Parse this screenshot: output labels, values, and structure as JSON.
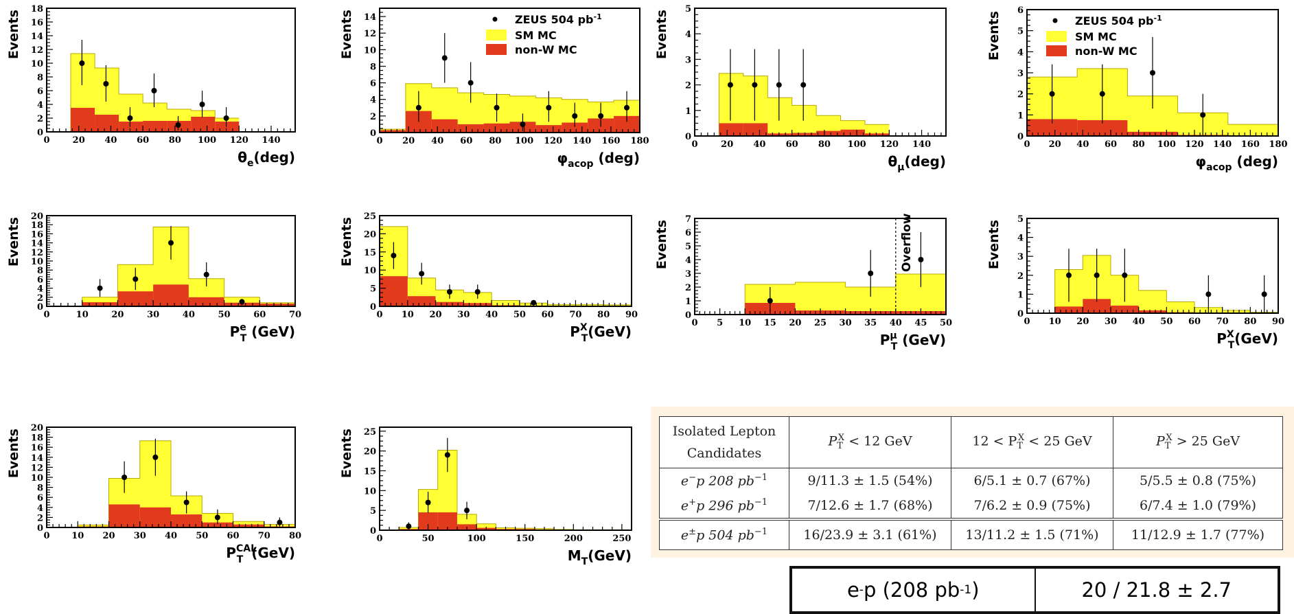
{
  "colors": {
    "sm": "#ffff33",
    "nonw": "#e23a1c",
    "frame": "#000000"
  },
  "chart_data": [
    {
      "id": "c1",
      "type": "bar",
      "xlabel_main": "θ",
      "xlabel_sub": "e",
      "xlabel_rest": "(deg)",
      "ylabel": "Events",
      "xlim": [
        0,
        155
      ],
      "ylim": [
        0,
        18
      ],
      "xticks": [
        0,
        20,
        40,
        60,
        80,
        100,
        120,
        140
      ],
      "yticks": [
        0,
        2,
        4,
        6,
        8,
        10,
        12,
        14,
        16,
        18
      ],
      "edges": [
        15,
        30,
        45,
        60,
        75,
        90,
        105,
        120
      ],
      "sm": [
        11.4,
        9.3,
        5.5,
        4.2,
        3.3,
        3.1,
        2.0
      ],
      "nonw": [
        3.5,
        2.5,
        1.5,
        1.6,
        1.6,
        2.2,
        1.5
      ],
      "points": [
        {
          "x": 22,
          "y": 10,
          "el": 3.2,
          "eh": 3.4
        },
        {
          "x": 37,
          "y": 7,
          "el": 2.6,
          "eh": 2.7
        },
        {
          "x": 52,
          "y": 2,
          "el": 1.3,
          "eh": 1.6
        },
        {
          "x": 67,
          "y": 6,
          "el": 2.4,
          "eh": 2.5
        },
        {
          "x": 82,
          "y": 1,
          "el": 0.8,
          "eh": 1.3
        },
        {
          "x": 97,
          "y": 4,
          "el": 1.9,
          "eh": 2.0
        },
        {
          "x": 112,
          "y": 2,
          "el": 1.3,
          "eh": 1.6
        }
      ]
    },
    {
      "id": "c2",
      "type": "bar",
      "xlabel_main": "φ",
      "xlabel_sub": "acop",
      "xlabel_rest": " (deg)",
      "ylabel": "Events",
      "xlim": [
        0,
        180
      ],
      "ylim": [
        0,
        15
      ],
      "xticks": [
        0,
        20,
        40,
        60,
        80,
        100,
        120,
        140,
        160,
        180
      ],
      "yticks": [
        0,
        2,
        4,
        6,
        8,
        10,
        12,
        14
      ],
      "edges": [
        0,
        18,
        36,
        54,
        72,
        90,
        108,
        126,
        144,
        162,
        180
      ],
      "sm": [
        0.4,
        5.9,
        5.4,
        4.8,
        4.6,
        4.4,
        4.2,
        4.0,
        3.7,
        3.9
      ],
      "nonw": [
        0.3,
        2.6,
        1.6,
        1.0,
        1.1,
        1.3,
        0.9,
        1.2,
        1.7,
        2.0
      ],
      "points": [
        {
          "x": 27,
          "y": 3,
          "el": 1.7,
          "eh": 2.0
        },
        {
          "x": 45,
          "y": 9,
          "el": 3.0,
          "eh": 3.0
        },
        {
          "x": 63,
          "y": 6,
          "el": 2.4,
          "eh": 2.5
        },
        {
          "x": 81,
          "y": 3,
          "el": 1.7,
          "eh": 1.7
        },
        {
          "x": 99,
          "y": 1,
          "el": 0.8,
          "eh": 1.3
        },
        {
          "x": 117,
          "y": 3,
          "el": 1.7,
          "eh": 2.0
        },
        {
          "x": 135,
          "y": 2,
          "el": 1.3,
          "eh": 1.6
        },
        {
          "x": 153,
          "y": 2,
          "el": 1.3,
          "eh": 1.6
        },
        {
          "x": 171,
          "y": 3,
          "el": 1.7,
          "eh": 2.0
        }
      ],
      "legend": {
        "data": "ZEUS 504 pb",
        "data_sup": "-1",
        "sm": "SM MC",
        "nonw": "non-W MC"
      }
    },
    {
      "id": "c3",
      "type": "bar",
      "xlabel_main": "θ",
      "xlabel_sub": "μ",
      "xlabel_rest": "(deg)",
      "ylabel": "Events",
      "xlim": [
        0,
        155
      ],
      "ylim": [
        0,
        5
      ],
      "xticks": [
        0,
        20,
        40,
        60,
        80,
        100,
        120,
        140
      ],
      "yticks": [
        0,
        1,
        2,
        3,
        4,
        5
      ],
      "edges": [
        15,
        30,
        45,
        60,
        75,
        90,
        105,
        120
      ],
      "sm": [
        2.45,
        2.35,
        1.5,
        1.2,
        0.8,
        0.6,
        0.45
      ],
      "nonw": [
        0.5,
        0.5,
        0.1,
        0.12,
        0.2,
        0.25,
        0.1
      ],
      "points": [
        {
          "x": 22,
          "y": 2,
          "el": 1.4,
          "eh": 1.4
        },
        {
          "x": 37,
          "y": 2,
          "el": 1.4,
          "eh": 1.4
        },
        {
          "x": 52,
          "y": 2,
          "el": 1.4,
          "eh": 1.4
        },
        {
          "x": 67,
          "y": 2,
          "el": 1.4,
          "eh": 1.4
        }
      ]
    },
    {
      "id": "c4",
      "type": "bar",
      "xlabel_main": "φ",
      "xlabel_sub": "acop",
      "xlabel_rest": " (deg)",
      "ylabel": "Events",
      "xlim": [
        0,
        180
      ],
      "ylim": [
        0,
        6
      ],
      "xticks": [
        0,
        20,
        40,
        60,
        80,
        100,
        120,
        140,
        160,
        180
      ],
      "yticks": [
        0,
        1,
        2,
        3,
        4,
        5,
        6
      ],
      "edges": [
        0,
        36,
        72,
        108,
        144,
        180
      ],
      "sm": [
        2.8,
        3.2,
        1.9,
        1.1,
        0.55
      ],
      "nonw": [
        0.8,
        0.75,
        0.2,
        0.05,
        0.03
      ],
      "points": [
        {
          "x": 18,
          "y": 2,
          "el": 1.4,
          "eh": 1.4
        },
        {
          "x": 54,
          "y": 2,
          "el": 1.4,
          "eh": 1.4
        },
        {
          "x": 90,
          "y": 3,
          "el": 1.7,
          "eh": 1.7
        },
        {
          "x": 126,
          "y": 1,
          "el": 1.0,
          "eh": 1.0
        }
      ],
      "legend": {
        "data": "ZEUS 504 pb",
        "data_sup": "-1",
        "sm": "SM MC",
        "nonw": "non-W MC"
      }
    },
    {
      "id": "c5",
      "type": "bar",
      "xlabel_main": "P",
      "xlabel_sub": "T",
      "xlabel_sup": "e",
      "xlabel_rest": " (GeV)",
      "ylabel": "Events",
      "xlim": [
        0,
        70
      ],
      "ylim": [
        0,
        20
      ],
      "xticks": [
        0,
        10,
        20,
        30,
        40,
        50,
        60,
        70
      ],
      "yticks": [
        0,
        2,
        4,
        6,
        8,
        10,
        12,
        14,
        16,
        18,
        20
      ],
      "edges": [
        10,
        20,
        30,
        40,
        50,
        60,
        70
      ],
      "sm": [
        2.0,
        9.2,
        17.5,
        6.1,
        2.0,
        0.8
      ],
      "nonw": [
        0.9,
        3.3,
        4.8,
        2.0,
        0.8,
        0.6
      ],
      "points": [
        {
          "x": 15,
          "y": 4,
          "el": 1.9,
          "eh": 2.0
        },
        {
          "x": 25,
          "y": 6,
          "el": 2.4,
          "eh": 2.5
        },
        {
          "x": 35,
          "y": 14,
          "el": 3.7,
          "eh": 3.7
        },
        {
          "x": 45,
          "y": 7,
          "el": 2.6,
          "eh": 2.7
        },
        {
          "x": 55,
          "y": 1,
          "el": 0.8,
          "eh": 0.6
        }
      ]
    },
    {
      "id": "c6",
      "type": "bar",
      "xlabel_main": "P",
      "xlabel_sub": "T",
      "xlabel_sup": "X",
      "xlabel_rest": "(GeV)",
      "ylabel": "Events",
      "xlim": [
        0,
        90
      ],
      "ylim": [
        0,
        25
      ],
      "xticks": [
        0,
        10,
        20,
        30,
        40,
        50,
        60,
        70,
        80,
        90
      ],
      "yticks": [
        0,
        5,
        10,
        15,
        20,
        25
      ],
      "edges": [
        0,
        10,
        20,
        30,
        40,
        50,
        60,
        70,
        80,
        90
      ],
      "sm": [
        22,
        7.8,
        4.5,
        3.8,
        1.6,
        0.9,
        0.5,
        0.5,
        0.4
      ],
      "nonw": [
        8.3,
        2.8,
        1.2,
        0.9,
        0.3,
        0.2,
        0.1,
        0.1,
        0.1
      ],
      "points": [
        {
          "x": 5,
          "y": 14,
          "el": 3.7,
          "eh": 3.7
        },
        {
          "x": 15,
          "y": 9,
          "el": 3.0,
          "eh": 3.0
        },
        {
          "x": 25,
          "y": 4,
          "el": 1.9,
          "eh": 2.0
        },
        {
          "x": 35,
          "y": 4,
          "el": 1.9,
          "eh": 2.0
        },
        {
          "x": 55,
          "y": 1,
          "el": 0.8,
          "eh": 0.5
        }
      ]
    },
    {
      "id": "c7",
      "type": "bar",
      "xlabel_main": "P",
      "xlabel_sub": "T",
      "xlabel_sup": "μ",
      "xlabel_rest": " (GeV)",
      "ylabel": "Events",
      "xlim": [
        0,
        50
      ],
      "ylim": [
        0,
        7
      ],
      "xticks": [
        0,
        5,
        10,
        15,
        20,
        25,
        30,
        35,
        40,
        45,
        50
      ],
      "yticks": [
        0,
        1,
        2,
        3,
        4,
        5,
        6,
        7
      ],
      "edges": [
        10,
        20,
        30,
        40,
        50
      ],
      "sm": [
        2.2,
        2.35,
        2.0,
        2.95
      ],
      "nonw": [
        0.85,
        0.3,
        0.25,
        0.25
      ],
      "points": [
        {
          "x": 15,
          "y": 1,
          "el": 0.8,
          "eh": 1.0
        },
        {
          "x": 35,
          "y": 3,
          "el": 1.7,
          "eh": 1.7
        },
        {
          "x": 45,
          "y": 4,
          "el": 2.0,
          "eh": 2.0
        }
      ],
      "overflow_x": 40,
      "overflow_label": "Overflow"
    },
    {
      "id": "c8",
      "type": "bar",
      "xlabel_main": "P",
      "xlabel_sub": "T",
      "xlabel_sup": "X",
      "xlabel_rest": "(GeV)",
      "ylabel": "Events",
      "xlim": [
        0,
        90
      ],
      "ylim": [
        0,
        5
      ],
      "xticks": [
        0,
        10,
        20,
        30,
        40,
        50,
        60,
        70,
        80,
        90
      ],
      "yticks": [
        0,
        1,
        2,
        3,
        4,
        5
      ],
      "edges": [
        10,
        20,
        30,
        40,
        50,
        60,
        70,
        80,
        90
      ],
      "sm": [
        2.3,
        3.05,
        2.0,
        1.2,
        0.6,
        0.3,
        0.15,
        0.05
      ],
      "nonw": [
        0.35,
        0.75,
        0.4,
        0.15,
        0.05,
        0.02,
        0.02,
        0.01
      ],
      "points": [
        {
          "x": 15,
          "y": 2,
          "el": 1.4,
          "eh": 1.4
        },
        {
          "x": 25,
          "y": 2,
          "el": 1.4,
          "eh": 1.4
        },
        {
          "x": 35,
          "y": 2,
          "el": 1.4,
          "eh": 1.4
        },
        {
          "x": 65,
          "y": 1,
          "el": 1.0,
          "eh": 1.0
        },
        {
          "x": 85,
          "y": 1,
          "el": 1.0,
          "eh": 1.0
        }
      ]
    },
    {
      "id": "c9",
      "type": "bar",
      "xlabel_main": "P",
      "xlabel_sub": "T",
      "xlabel_sup": "CAL",
      "xlabel_rest": "(GeV)",
      "ylabel": "Events",
      "xlim": [
        0,
        80
      ],
      "ylim": [
        0,
        20
      ],
      "xticks": [
        0,
        10,
        20,
        30,
        40,
        50,
        60,
        70,
        80
      ],
      "yticks": [
        0,
        2,
        4,
        6,
        8,
        10,
        12,
        14,
        16,
        18,
        20
      ],
      "edges": [
        10,
        20,
        30,
        40,
        50,
        60,
        70,
        80
      ],
      "sm": [
        0.5,
        9.8,
        17.3,
        6.3,
        2.8,
        1.2,
        0.6
      ],
      "nonw": [
        0.2,
        4.6,
        4.0,
        2.6,
        1.0,
        0.6,
        0.2
      ],
      "points": [
        {
          "x": 25,
          "y": 10,
          "el": 3.1,
          "eh": 3.2
        },
        {
          "x": 35,
          "y": 14,
          "el": 3.7,
          "eh": 3.7
        },
        {
          "x": 45,
          "y": 5,
          "el": 2.2,
          "eh": 2.2
        },
        {
          "x": 55,
          "y": 2,
          "el": 1.3,
          "eh": 1.6
        },
        {
          "x": 75,
          "y": 1,
          "el": 0.8,
          "eh": 1.0
        }
      ]
    },
    {
      "id": "c10",
      "type": "bar",
      "xlabel_main": "M",
      "xlabel_sub": "T",
      "xlabel_rest": "(GeV)",
      "ylabel": "Events",
      "xlim": [
        0,
        260
      ],
      "ylim": [
        0,
        26
      ],
      "xticks": [
        0,
        50,
        100,
        150,
        200,
        250
      ],
      "yticks": [
        0,
        5,
        10,
        15,
        20,
        25
      ],
      "edges": [
        20,
        40,
        60,
        80,
        100,
        120,
        140,
        160,
        180,
        200,
        220,
        240,
        260
      ],
      "sm": [
        0.7,
        10.3,
        20.2,
        4.0,
        1.6,
        0.6,
        0.5,
        0.4,
        0.2,
        0.1,
        0.1,
        0.1
      ],
      "nonw": [
        0.3,
        4.5,
        4.5,
        1.5,
        0.6,
        0.3,
        0.3,
        0.2,
        0.1,
        0.05,
        0.05,
        0.05
      ],
      "points": [
        {
          "x": 30,
          "y": 1,
          "el": 0.8,
          "eh": 1.0
        },
        {
          "x": 50,
          "y": 7,
          "el": 2.6,
          "eh": 2.7
        },
        {
          "x": 70,
          "y": 19,
          "el": 4.3,
          "eh": 4.3
        },
        {
          "x": 90,
          "y": 5,
          "el": 2.2,
          "eh": 2.2
        }
      ]
    }
  ],
  "table": {
    "header": {
      "col0_l1": "Isolated Lepton",
      "col0_l2": "Candidates",
      "col1": "P",
      "col1_b": " < 12 GeV",
      "col2_a": "12 < P",
      "col2_b": " < 25 GeV",
      "col3": "P",
      "col3_b": " > 25 GeV",
      "sub": "T",
      "sup": "X"
    },
    "rows": [
      {
        "label_a": "e",
        "label_sup": "−",
        "label_b": "p 208 pb",
        "label_exp": "−1",
        "c1": "9/11.3 ± 1.5 (54%)",
        "c2": "6/5.1 ± 0.7 (67%)",
        "c3": "5/5.5 ± 0.8 (75%)"
      },
      {
        "label_a": "e",
        "label_sup": "+",
        "label_b": "p 296 pb",
        "label_exp": "−1",
        "c1": "7/12.6 ± 1.7 (68%)",
        "c2": "7/6.2 ± 0.9 (75%)",
        "c3": "6/7.4 ± 1.0 (79%)"
      },
      {
        "label_a": "e",
        "label_sup": "±",
        "label_b": "p 504 pb",
        "label_exp": "−1",
        "c1": "16/23.9 ± 3.1 (61%)",
        "c2": "13/11.2 ± 1.5 (71%)",
        "c3": "11/12.9 ± 1.7 (77%)"
      }
    ]
  },
  "bottom_box": {
    "left_a": "e",
    "left_sup": "-",
    "left_b": "p (208 pb",
    "left_exp": "-1",
    "left_c": ")",
    "right": "20 / 21.8 ± 2.7"
  }
}
